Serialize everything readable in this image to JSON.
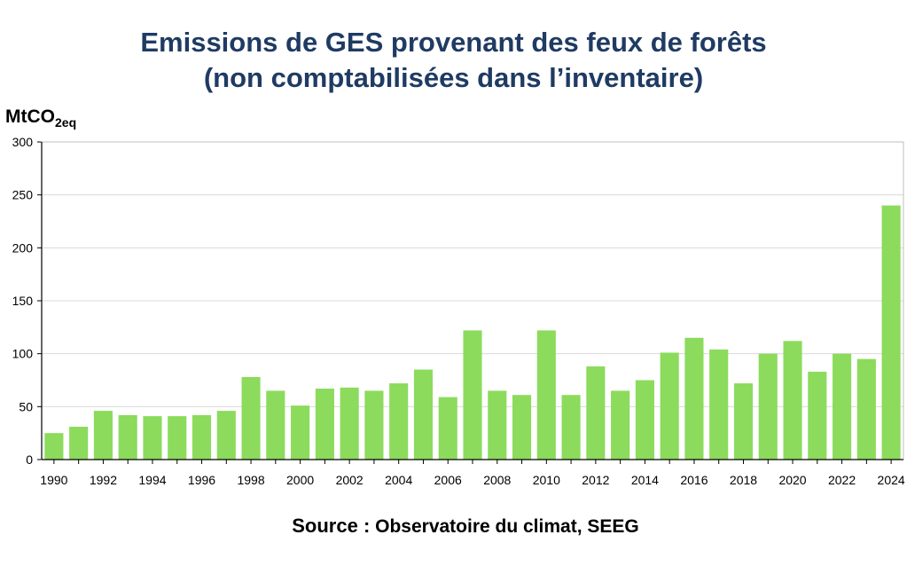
{
  "title": {
    "line1": "Emissions de GES provenant des feux de forêts",
    "line2": "(non comptabilisées dans l’inventaire)"
  },
  "unit": {
    "main": "MtCO",
    "sub": "2eq"
  },
  "source": {
    "label": "Source :",
    "text": "Observatoire du climat, SEEG"
  },
  "colors": {
    "bar": "#8cdb5c",
    "grid": "#d9d9d9",
    "axis": "#000000",
    "title": "#1f3b63"
  },
  "chart_data": {
    "type": "bar",
    "title": "Emissions de GES provenant des feux de forêts (non comptabilisées dans l’inventaire)",
    "xlabel": "",
    "ylabel": "MtCO2eq",
    "ylim": [
      0,
      300
    ],
    "yticks": [
      0,
      50,
      100,
      150,
      200,
      250,
      300
    ],
    "grid": true,
    "categories": [
      1990,
      1991,
      1992,
      1993,
      1994,
      1995,
      1996,
      1997,
      1998,
      1999,
      2000,
      2001,
      2002,
      2003,
      2004,
      2005,
      2006,
      2007,
      2008,
      2009,
      2010,
      2011,
      2012,
      2013,
      2014,
      2015,
      2016,
      2017,
      2018,
      2019,
      2020,
      2021,
      2022,
      2023,
      2024
    ],
    "tick_labels": [
      "1990",
      "",
      "1992",
      "",
      "1994",
      "",
      "1996",
      "",
      "1998",
      "",
      "2000",
      "",
      "2002",
      "",
      "2004",
      "",
      "2006",
      "",
      "2008",
      "",
      "2010",
      "",
      "2012",
      "",
      "2014",
      "",
      "2016",
      "",
      "2018",
      "",
      "2020",
      "",
      "2022",
      "",
      "2024"
    ],
    "values": [
      25,
      31,
      46,
      42,
      41,
      41,
      42,
      46,
      78,
      65,
      51,
      67,
      68,
      65,
      72,
      85,
      59,
      122,
      65,
      61,
      122,
      61,
      88,
      65,
      75,
      101,
      115,
      104,
      72,
      100,
      112,
      83,
      100,
      95,
      240
    ]
  }
}
